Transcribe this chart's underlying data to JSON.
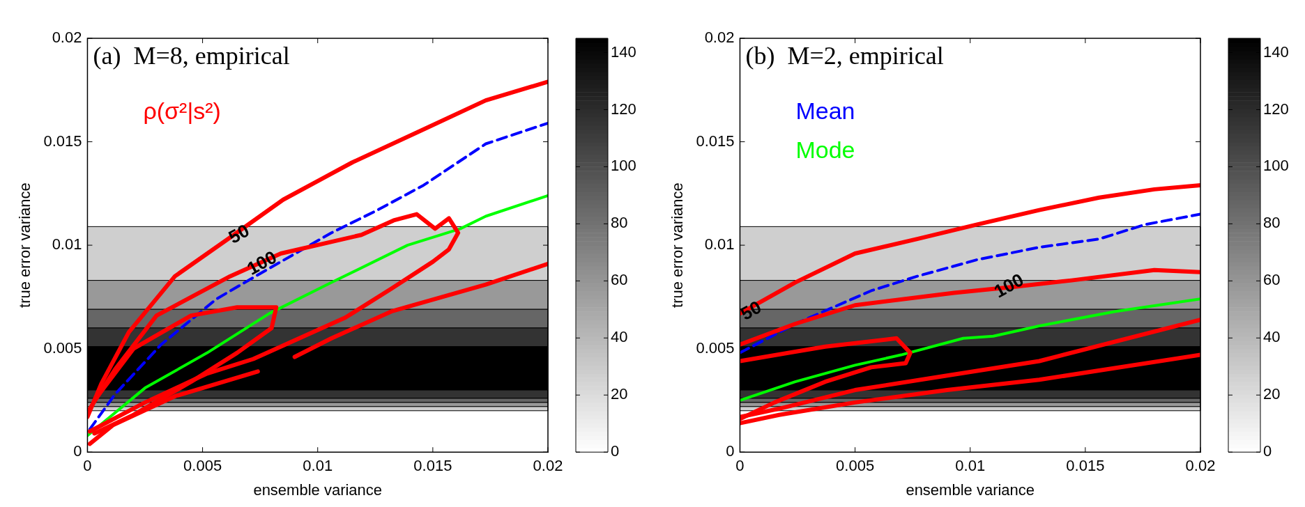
{
  "chart_data": [
    {
      "type": "line",
      "title": "(a)  M=8, empirical",
      "xlabel": "ensemble variance",
      "ylabel": "true error variance",
      "xlim": [
        0,
        0.02
      ],
      "ylim": [
        0,
        0.02
      ],
      "xticks": [
        0,
        0.005,
        0.01,
        0.015,
        0.02
      ],
      "yticks": [
        0,
        0.005,
        0.01,
        0.015,
        0.02
      ],
      "grid": false,
      "legend": "top left",
      "marker": "none",
      "clim": [
        0,
        145
      ],
      "cticks": [
        0,
        20,
        40,
        60,
        80,
        100,
        120,
        140
      ],
      "bands": [
        {
          "axis": "y",
          "from": 0.0083,
          "to": 0.0109,
          "color": "#cfcfcf"
        },
        {
          "axis": "y",
          "from": 0.0069,
          "to": 0.0083,
          "color": "#999999"
        },
        {
          "axis": "y",
          "from": 0.006,
          "to": 0.0069,
          "color": "#666666"
        },
        {
          "axis": "y",
          "from": 0.0051,
          "to": 0.006,
          "color": "#333333"
        },
        {
          "axis": "y",
          "from": 0.003,
          "to": 0.0051,
          "color": "#000000"
        },
        {
          "axis": "y",
          "from": 0.0026,
          "to": 0.003,
          "color": "#333333"
        },
        {
          "axis": "y",
          "from": 0.0024,
          "to": 0.0026,
          "color": "#666666"
        },
        {
          "axis": "y",
          "from": 0.0022,
          "to": 0.0024,
          "color": "#999999"
        },
        {
          "axis": "y",
          "from": 0.002,
          "to": 0.0022,
          "color": "#cfcfcf"
        }
      ],
      "annotations": [
        {
          "text": "50",
          "x": 0.0066,
          "y": 0.0105
        },
        {
          "text": "100",
          "x": 0.0076,
          "y": 0.0091
        }
      ],
      "series": [
        {
          "name": "ρ(σ²|s²)",
          "color": "#ff0000",
          "x": [
            0,
            0.0006,
            0.0018,
            0.0038,
            0.0061,
            0.0085,
            0.0115,
            0.0146,
            0.0173,
            0.02
          ],
          "values": [
            0.0017,
            0.0033,
            0.0058,
            0.0085,
            0.0103,
            0.0122,
            0.014,
            0.0156,
            0.017,
            0.0179
          ]
        },
        {
          "color": "#ff0000",
          "x": [
            0.0001,
            0.0012,
            0.003,
            0.0062,
            0.0084,
            0.0119,
            0.0133,
            0.0143,
            0.0151,
            0.0157,
            0.0161,
            0.0157,
            0.015,
            0.0132,
            0.0112,
            0.0092,
            0.0072,
            0.0052,
            0.0025,
            0.0001
          ],
          "values": [
            0.0021,
            0.004,
            0.0066,
            0.0085,
            0.0096,
            0.0105,
            0.0112,
            0.0115,
            0.0108,
            0.0113,
            0.0106,
            0.0098,
            0.0092,
            0.0079,
            0.0065,
            0.0055,
            0.0045,
            0.0038,
            0.0024,
            0.001
          ]
        },
        {
          "color": "#ff0000",
          "x": [
            0.0003,
            0.002,
            0.0045,
            0.0065,
            0.0082,
            0.008,
            0.0065,
            0.0045,
            0.002,
            0.0003
          ],
          "values": [
            0.0025,
            0.005,
            0.0066,
            0.007,
            0.007,
            0.006,
            0.0048,
            0.0034,
            0.0018,
            0.0009
          ]
        },
        {
          "color": "#ff0000",
          "x": [
            0.0001,
            0.0011,
            0.0038,
            0.0074,
            0.0082,
            0.009,
            0.0106,
            0.0132,
            0.0173,
            0.02
          ],
          "values": [
            0.0004,
            0.0013,
            0.0027,
            0.0039,
            null,
            0.0046,
            0.0055,
            0.0068,
            0.0081,
            0.0091
          ]
        },
        {
          "color": "#0000ff",
          "line_style": "dashed",
          "x": [
            0.0001,
            0.0012,
            0.0032,
            0.0056,
            0.0073,
            0.0106,
            0.0126,
            0.0146,
            0.0173,
            0.02
          ],
          "values": [
            0.0011,
            0.0028,
            0.0052,
            0.0074,
            0.0085,
            0.0106,
            0.0117,
            0.0129,
            0.0149,
            0.0159
          ]
        },
        {
          "color": "#00ff00",
          "x": [
            0,
            0.0025,
            0.0052,
            0.0079,
            0.0106,
            0.0139,
            0.0162,
            0.0173,
            0.02
          ],
          "values": [
            0.0008,
            0.0031,
            0.0048,
            0.0067,
            0.0082,
            0.01,
            0.0108,
            0.0114,
            0.0124
          ]
        }
      ]
    },
    {
      "type": "line",
      "title": "(b)  M=2, empirical",
      "xlabel": "ensemble variance",
      "ylabel": "true error variance",
      "xlim": [
        0,
        0.02
      ],
      "ylim": [
        0,
        0.02
      ],
      "xticks": [
        0,
        0.005,
        0.01,
        0.015,
        0.02
      ],
      "yticks": [
        0,
        0.005,
        0.01,
        0.015,
        0.02
      ],
      "grid": false,
      "legend": "top left",
      "marker": "none",
      "clim": [
        0,
        145
      ],
      "cticks": [
        0,
        20,
        40,
        60,
        80,
        100,
        120,
        140
      ],
      "bands": [
        {
          "axis": "y",
          "from": 0.0083,
          "to": 0.0109,
          "color": "#cfcfcf"
        },
        {
          "axis": "y",
          "from": 0.0069,
          "to": 0.0083,
          "color": "#999999"
        },
        {
          "axis": "y",
          "from": 0.006,
          "to": 0.0069,
          "color": "#666666"
        },
        {
          "axis": "y",
          "from": 0.0051,
          "to": 0.006,
          "color": "#333333"
        },
        {
          "axis": "y",
          "from": 0.003,
          "to": 0.0051,
          "color": "#000000"
        },
        {
          "axis": "y",
          "from": 0.0026,
          "to": 0.003,
          "color": "#333333"
        },
        {
          "axis": "y",
          "from": 0.0024,
          "to": 0.0026,
          "color": "#666666"
        },
        {
          "axis": "y",
          "from": 0.0022,
          "to": 0.0024,
          "color": "#999999"
        },
        {
          "axis": "y",
          "from": 0.002,
          "to": 0.0022,
          "color": "#cfcfcf"
        }
      ],
      "annotations": [
        {
          "text": "50",
          "x": 0.0005,
          "y": 0.0068
        },
        {
          "text": "100",
          "x": 0.0117,
          "y": 0.008
        }
      ],
      "series": [
        {
          "color": "#ff0000",
          "x": [
            0,
            0.0024,
            0.005,
            0.0077,
            0.0103,
            0.013,
            0.0156,
            0.018,
            0.02
          ],
          "values": [
            0.0067,
            0.0082,
            0.0096,
            0.0103,
            0.011,
            0.0117,
            0.0123,
            0.0127,
            0.0129
          ]
        },
        {
          "color": "#ff0000",
          "x": [
            0,
            0.0024,
            0.005,
            0.0093,
            0.012,
            0.0144,
            0.018,
            0.02
          ],
          "values": [
            0.0052,
            0.0062,
            0.0071,
            0.0077,
            0.008,
            0.0083,
            0.0088,
            0.0087
          ]
        },
        {
          "color": "#ff0000",
          "x": [
            0,
            0.0037,
            0.0068,
            0.0074,
            0.0072,
            0.0057,
            0.0037,
            0.0015,
            0
          ],
          "values": [
            0.0044,
            0.0051,
            0.0055,
            0.0048,
            0.0043,
            0.0041,
            0.0034,
            0.0024,
            0.0016
          ]
        },
        {
          "color": "#ff0000",
          "x": [
            0,
            0.0017,
            0.005,
            0.009,
            0.013,
            0.02
          ],
          "values": [
            0.0017,
            0.0021,
            0.003,
            0.0037,
            0.0044,
            0.0064
          ]
        },
        {
          "color": "#ff0000",
          "x": [
            0,
            0.0017,
            0.005,
            0.009,
            0.013,
            0.02
          ],
          "values": [
            0.0014,
            0.0018,
            0.0024,
            0.003,
            0.0035,
            0.0047
          ]
        },
        {
          "name": "Mean",
          "color": "#0000ff",
          "line_style": "dashed",
          "x": [
            0,
            0.0024,
            0.0057,
            0.0077,
            0.0103,
            0.013,
            0.0156,
            0.0176,
            0.02
          ],
          "values": [
            0.0048,
            0.0062,
            0.0078,
            0.0085,
            0.0093,
            0.0099,
            0.0103,
            0.011,
            0.0115
          ]
        },
        {
          "name": "Mode",
          "color": "#00ff00",
          "x": [
            0,
            0.0024,
            0.005,
            0.007,
            0.0097,
            0.011,
            0.013,
            0.0163,
            0.02
          ],
          "values": [
            0.0025,
            0.0034,
            0.0042,
            0.0047,
            0.0055,
            0.0056,
            0.0061,
            0.0068,
            0.0074
          ]
        }
      ]
    }
  ]
}
